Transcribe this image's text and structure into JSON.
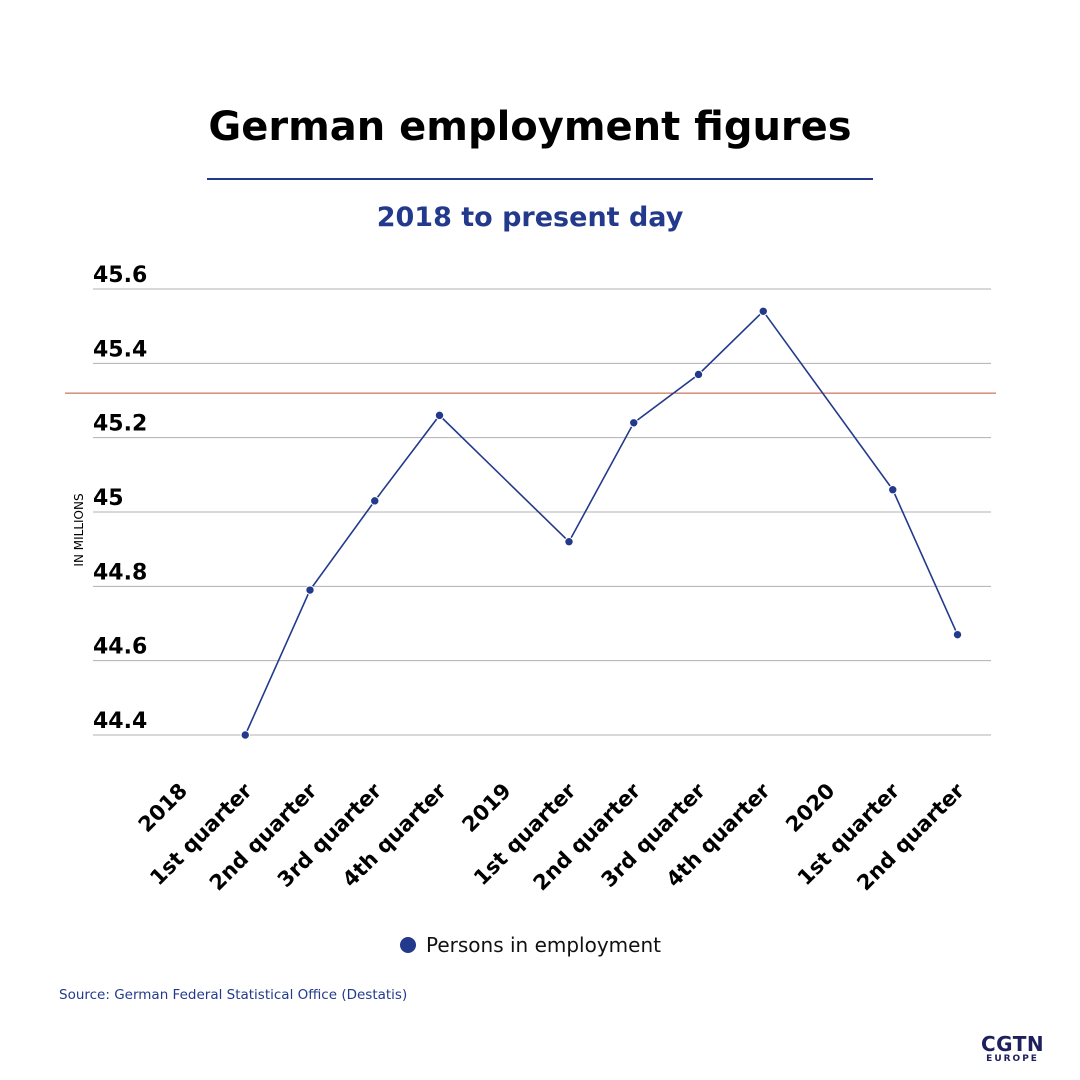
{
  "header": {
    "title": "German employment figures",
    "subtitle": "2018 to present day"
  },
  "legend": {
    "label": "Persons in employment"
  },
  "source": "Source: German Federal Statistical Office (Destatis)",
  "logo": {
    "main": "CGTN",
    "sub": "EUROPE"
  },
  "colors": {
    "series": "#233a8c",
    "reference_line": "#c0503a",
    "grid": "#b0b0b0"
  },
  "chart_data": {
    "type": "line",
    "title": "German employment figures",
    "subtitle": "2018 to present day",
    "xlabel": "",
    "ylabel": "IN MILLIONS",
    "ylim": [
      44.4,
      45.6
    ],
    "yticks": [
      "45.6",
      "45.4",
      "45.2",
      "45",
      "44.8",
      "44.6",
      "44.4"
    ],
    "ytick_values": [
      45.6,
      45.4,
      45.2,
      45.0,
      44.8,
      44.6,
      44.4
    ],
    "grid": true,
    "legend_position": "bottom",
    "categories": [
      "2018",
      "1st quarter",
      "2nd quarter",
      "3rd quarter",
      "4th quarter",
      "2019",
      "1st quarter",
      "2nd quarter",
      "3rd quarter",
      "4th quarter",
      "2020",
      "1st quarter",
      "2nd quarter"
    ],
    "series": [
      {
        "name": "Persons in employment",
        "values": [
          null,
          44.4,
          44.79,
          45.03,
          45.26,
          null,
          44.92,
          45.24,
          45.37,
          45.54,
          null,
          45.06,
          44.67
        ]
      }
    ],
    "reference_line": {
      "value": 45.32
    }
  }
}
